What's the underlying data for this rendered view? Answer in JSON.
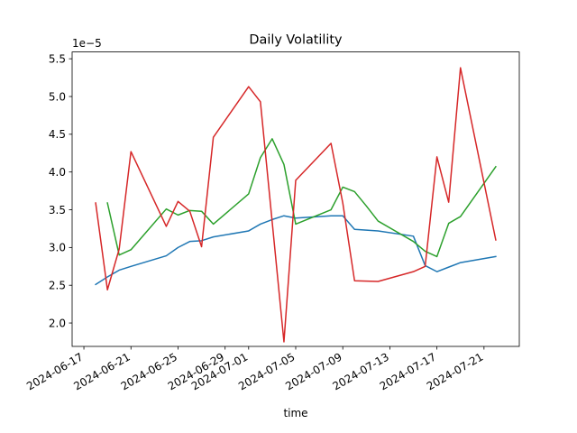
{
  "chart_data": {
    "type": "line",
    "title": "Daily Volatility",
    "xlabel": "time",
    "ylabel": "",
    "y_offset_label": "1e−5",
    "ylim": [
      1.69,
      5.59
    ],
    "xlim": [
      "2024-06-16",
      "2024-07-24"
    ],
    "x_ticks": [
      "2024-06-17",
      "2024-06-21",
      "2024-06-25",
      "2024-06-29",
      "2024-07-01",
      "2024-07-05",
      "2024-07-09",
      "2024-07-13",
      "2024-07-17",
      "2024-07-21"
    ],
    "y_ticks": [
      "2.0",
      "2.5",
      "3.0",
      "3.5",
      "4.0",
      "4.5",
      "5.0",
      "5.5"
    ],
    "grid": false,
    "series": [
      {
        "color": "#1f77b4",
        "points": [
          {
            "x": "2024-06-18",
            "y": 2.51
          },
          {
            "x": "2024-06-19",
            "y": 2.61
          },
          {
            "x": "2024-06-20",
            "y": 2.7
          },
          {
            "x": "2024-06-21",
            "y": 2.75
          },
          {
            "x": "2024-06-24",
            "y": 2.89
          },
          {
            "x": "2024-06-25",
            "y": 3.0
          },
          {
            "x": "2024-06-26",
            "y": 3.08
          },
          {
            "x": "2024-06-27",
            "y": 3.09
          },
          {
            "x": "2024-06-28",
            "y": 3.14
          },
          {
            "x": "2024-07-01",
            "y": 3.22
          },
          {
            "x": "2024-07-02",
            "y": 3.31
          },
          {
            "x": "2024-07-03",
            "y": 3.37
          },
          {
            "x": "2024-07-04",
            "y": 3.42
          },
          {
            "x": "2024-07-05",
            "y": 3.39
          },
          {
            "x": "2024-07-08",
            "y": 3.42
          },
          {
            "x": "2024-07-09",
            "y": 3.42
          },
          {
            "x": "2024-07-10",
            "y": 3.24
          },
          {
            "x": "2024-07-12",
            "y": 3.22
          },
          {
            "x": "2024-07-15",
            "y": 3.15
          },
          {
            "x": "2024-07-16",
            "y": 2.76
          },
          {
            "x": "2024-07-17",
            "y": 2.68
          },
          {
            "x": "2024-07-18",
            "y": 2.74
          },
          {
            "x": "2024-07-19",
            "y": 2.8
          },
          {
            "x": "2024-07-22",
            "y": 2.88
          }
        ]
      },
      {
        "color": "#2ca02c",
        "points": [
          {
            "x": "2024-06-19",
            "y": 3.59
          },
          {
            "x": "2024-06-20",
            "y": 2.9
          },
          {
            "x": "2024-06-21",
            "y": 2.97
          },
          {
            "x": "2024-06-24",
            "y": 3.51
          },
          {
            "x": "2024-06-25",
            "y": 3.43
          },
          {
            "x": "2024-06-26",
            "y": 3.49
          },
          {
            "x": "2024-06-27",
            "y": 3.48
          },
          {
            "x": "2024-06-28",
            "y": 3.31
          },
          {
            "x": "2024-07-01",
            "y": 3.71
          },
          {
            "x": "2024-07-02",
            "y": 4.19
          },
          {
            "x": "2024-07-03",
            "y": 4.44
          },
          {
            "x": "2024-07-04",
            "y": 4.1
          },
          {
            "x": "2024-07-05",
            "y": 3.31
          },
          {
            "x": "2024-07-08",
            "y": 3.5
          },
          {
            "x": "2024-07-09",
            "y": 3.8
          },
          {
            "x": "2024-07-10",
            "y": 3.74
          },
          {
            "x": "2024-07-11",
            "y": 3.55
          },
          {
            "x": "2024-07-12",
            "y": 3.35
          },
          {
            "x": "2024-07-15",
            "y": 3.08
          },
          {
            "x": "2024-07-16",
            "y": 2.95
          },
          {
            "x": "2024-07-17",
            "y": 2.88
          },
          {
            "x": "2024-07-18",
            "y": 3.32
          },
          {
            "x": "2024-07-19",
            "y": 3.41
          },
          {
            "x": "2024-07-22",
            "y": 4.07
          }
        ]
      },
      {
        "color": "#d62728",
        "points": [
          {
            "x": "2024-06-18",
            "y": 3.59
          },
          {
            "x": "2024-06-19",
            "y": 2.44
          },
          {
            "x": "2024-06-20",
            "y": 2.98
          },
          {
            "x": "2024-06-21",
            "y": 4.27
          },
          {
            "x": "2024-06-24",
            "y": 3.28
          },
          {
            "x": "2024-06-25",
            "y": 3.61
          },
          {
            "x": "2024-06-26",
            "y": 3.48
          },
          {
            "x": "2024-06-27",
            "y": 3.01
          },
          {
            "x": "2024-06-28",
            "y": 4.46
          },
          {
            "x": "2024-07-01",
            "y": 5.13
          },
          {
            "x": "2024-07-02",
            "y": 4.93
          },
          {
            "x": "2024-07-04",
            "y": 1.75
          },
          {
            "x": "2024-07-05",
            "y": 3.89
          },
          {
            "x": "2024-07-08",
            "y": 4.38
          },
          {
            "x": "2024-07-09",
            "y": 3.59
          },
          {
            "x": "2024-07-10",
            "y": 2.56
          },
          {
            "x": "2024-07-12",
            "y": 2.55
          },
          {
            "x": "2024-07-15",
            "y": 2.68
          },
          {
            "x": "2024-07-16",
            "y": 2.75
          },
          {
            "x": "2024-07-17",
            "y": 4.2
          },
          {
            "x": "2024-07-18",
            "y": 3.6
          },
          {
            "x": "2024-07-19",
            "y": 5.38
          },
          {
            "x": "2024-07-22",
            "y": 3.1
          }
        ]
      }
    ]
  }
}
